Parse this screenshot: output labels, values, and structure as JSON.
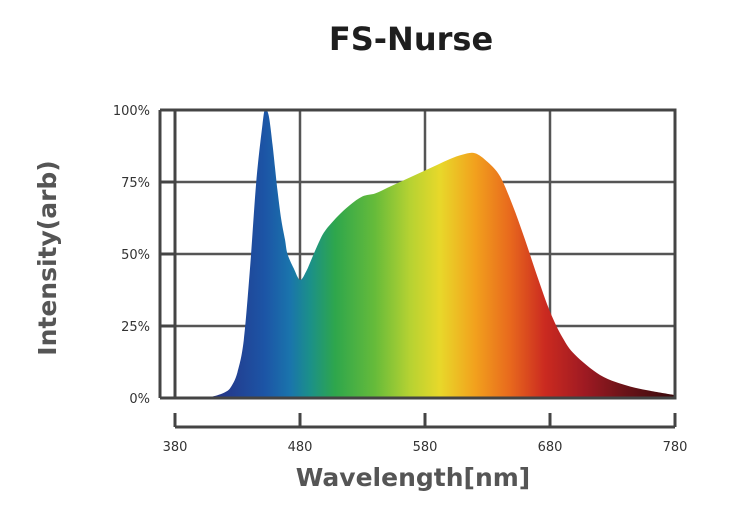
{
  "chart_data": {
    "type": "area",
    "title": "FS-Nurse",
    "xlabel": "Wavelength[nm]",
    "ylabel": "Intensity(arb)",
    "xlim": [
      380,
      780
    ],
    "ylim": [
      0,
      100
    ],
    "x_ticks": [
      "380",
      "480",
      "580",
      "680",
      "780"
    ],
    "y_ticks": [
      "0%",
      "25%",
      "50%",
      "75%",
      "100%"
    ],
    "grid": true,
    "fill": "visible-spectrum gradient",
    "series": [
      {
        "x": [
          380,
          400,
          410,
          420,
          425,
          430,
          435,
          440,
          445,
          450,
          452,
          455,
          458,
          460,
          462,
          465,
          468,
          470,
          475,
          480,
          485,
          490,
          495,
          500,
          510,
          520,
          530,
          540,
          550,
          560,
          570,
          580,
          590,
          600,
          610,
          620,
          630,
          640,
          650,
          660,
          670,
          680,
          690,
          700,
          720,
          740,
          760,
          780
        ],
        "y": [
          0,
          0,
          0.5,
          2,
          4,
          9,
          20,
          45,
          75,
          95,
          100,
          98,
          88,
          80,
          72,
          62,
          55,
          50,
          45,
          41,
          44,
          49,
          54,
          58,
          63,
          67,
          70,
          71,
          73,
          75,
          77,
          79,
          81,
          83,
          84.5,
          85,
          82,
          77,
          67,
          55,
          42,
          30,
          21,
          15,
          8,
          4.5,
          2.5,
          1
        ]
      }
    ]
  }
}
